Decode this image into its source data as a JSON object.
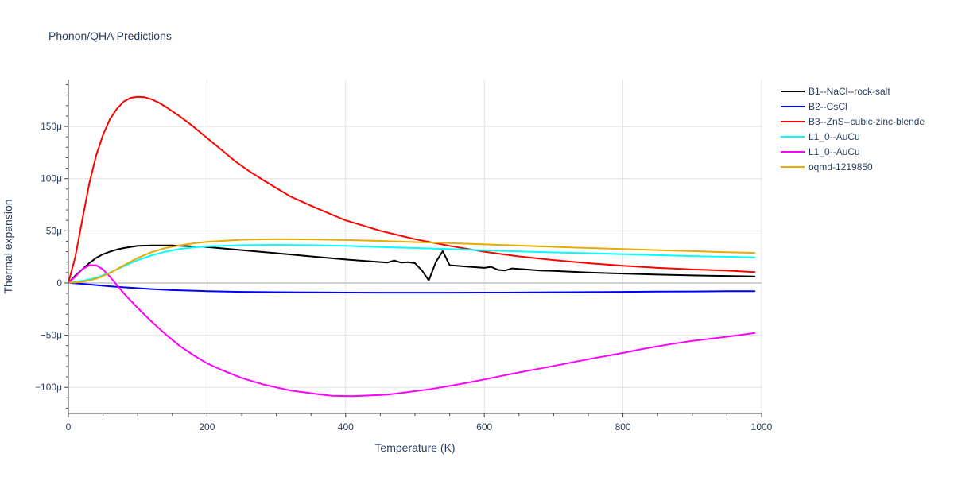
{
  "chart_data": {
    "type": "line",
    "title": "Phonon/QHA Predictions",
    "xlabel": "Temperature (K)",
    "ylabel": "Thermal expansion",
    "xlim": [
      0,
      1000
    ],
    "ylim": [
      -125,
      195
    ],
    "y_unit_suffix": "μ",
    "x_ticks": [
      0,
      200,
      400,
      600,
      800,
      1000
    ],
    "y_ticks": [
      -100,
      -50,
      0,
      50,
      100,
      150
    ],
    "grid": true,
    "legend_position": "top-right",
    "series": [
      {
        "name": "B1--NaCl--rock-salt",
        "color": "#000000",
        "x": [
          0,
          10,
          20,
          30,
          40,
          50,
          60,
          70,
          80,
          100,
          120,
          150,
          200,
          250,
          300,
          350,
          400,
          430,
          460,
          470,
          480,
          490,
          500,
          510,
          520,
          530,
          540,
          550,
          560,
          580,
          600,
          610,
          620,
          630,
          640,
          660,
          680,
          700,
          750,
          800,
          850,
          900,
          950,
          990
        ],
        "y": [
          0,
          7,
          13,
          19,
          24,
          27.5,
          30,
          32,
          33.5,
          35.5,
          36,
          36,
          34.5,
          31.5,
          28.5,
          25.5,
          22.5,
          21,
          19.5,
          21.5,
          19.5,
          20,
          19,
          12,
          2.5,
          20,
          30.5,
          17,
          16.5,
          15.5,
          14.5,
          15.5,
          12.5,
          12,
          14,
          13,
          12,
          11.5,
          10,
          9,
          8,
          7.3,
          6.7,
          6.2
        ]
      },
      {
        "name": "B2--CsCl",
        "color": "#0000ff",
        "x": [
          0,
          20,
          40,
          60,
          80,
          100,
          120,
          150,
          200,
          250,
          300,
          350,
          400,
          450,
          500,
          550,
          600,
          650,
          700,
          750,
          800,
          850,
          900,
          950,
          990
        ],
        "y": [
          0,
          -0.8,
          -2,
          -3.2,
          -4.2,
          -5,
          -5.8,
          -6.8,
          -7.8,
          -8.5,
          -8.8,
          -9,
          -9.2,
          -9.3,
          -9.3,
          -9.3,
          -9.2,
          -9.1,
          -8.9,
          -8.7,
          -8.5,
          -8.3,
          -8.1,
          -7.9,
          -7.8
        ]
      },
      {
        "name": "B3--ZnS--cubic-zinc-blende",
        "color": "#ff0000",
        "x": [
          0,
          10,
          20,
          30,
          40,
          50,
          60,
          70,
          80,
          90,
          100,
          110,
          120,
          130,
          140,
          160,
          180,
          200,
          220,
          240,
          260,
          280,
          300,
          320,
          350,
          380,
          400,
          450,
          500,
          550,
          600,
          650,
          700,
          750,
          800,
          850,
          900,
          950,
          990
        ],
        "y": [
          0,
          25,
          60,
          95,
          122,
          142,
          157,
          167,
          174,
          177.5,
          178.5,
          178,
          176,
          173,
          169,
          160,
          150,
          139,
          128,
          117,
          107.5,
          99,
          91,
          83,
          74,
          65.5,
          60,
          50,
          42,
          35.5,
          30,
          25.5,
          22,
          19,
          16.5,
          14.5,
          13,
          11.8,
          10.5
        ]
      },
      {
        "name": "L1_0--AuCu",
        "color": "#00ffff",
        "x": [
          0,
          20,
          40,
          60,
          80,
          100,
          120,
          140,
          160,
          180,
          200,
          250,
          300,
          350,
          400,
          450,
          500,
          550,
          600,
          650,
          700,
          750,
          800,
          850,
          900,
          950,
          990
        ],
        "y": [
          0,
          2,
          5,
          10,
          16,
          22,
          26.5,
          30,
          32.5,
          34,
          35,
          36.2,
          36.5,
          36.2,
          35.5,
          34.5,
          33.5,
          32.5,
          31.3,
          30.3,
          29.3,
          28.5,
          27.5,
          26.7,
          25.8,
          25.1,
          24.5
        ]
      },
      {
        "name": "L1_0--AuCu",
        "color": "#ff00ff",
        "x": [
          0,
          10,
          20,
          30,
          40,
          50,
          60,
          80,
          100,
          120,
          140,
          160,
          180,
          200,
          220,
          250,
          280,
          320,
          360,
          380,
          410,
          460,
          520,
          560,
          600,
          640,
          660,
          700,
          750,
          800,
          830,
          870,
          900,
          950,
          990
        ],
        "y": [
          0,
          6,
          13,
          17,
          17,
          13,
          6,
          -10,
          -24,
          -37,
          -49,
          -60,
          -69,
          -77,
          -83,
          -91,
          -97,
          -103,
          -106.5,
          -108,
          -108.5,
          -107,
          -102,
          -97.5,
          -92.5,
          -87,
          -84.5,
          -79.5,
          -73,
          -67,
          -63,
          -58.5,
          -55.5,
          -51.5,
          -48
        ]
      },
      {
        "name": "oqmd-1219850",
        "color": "#e6ac00",
        "x": [
          0,
          20,
          40,
          60,
          80,
          100,
          120,
          140,
          160,
          180,
          200,
          250,
          300,
          350,
          400,
          450,
          500,
          550,
          600,
          650,
          700,
          750,
          800,
          850,
          900,
          950,
          990
        ],
        "y": [
          0,
          1,
          4,
          9.5,
          17,
          24,
          29.5,
          33.5,
          36,
          38,
          39.5,
          41.5,
          42,
          41.8,
          41.2,
          40.3,
          39.2,
          38.2,
          37,
          35.8,
          34.6,
          33.5,
          32.5,
          31.5,
          30.5,
          29.5,
          28.8
        ]
      }
    ]
  }
}
